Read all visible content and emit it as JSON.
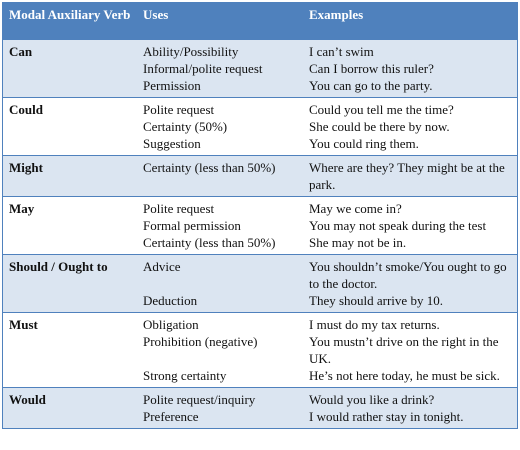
{
  "table": {
    "header": [
      "Modal Auxiliary Verb",
      "Uses",
      "Examples"
    ],
    "rows": [
      {
        "modal": "Can",
        "entries": [
          {
            "use": "Ability/Possibility",
            "example": "I can’t swim"
          },
          {
            "use": "Informal/polite request",
            "example": "Can I borrow this ruler?"
          },
          {
            "use": "Permission",
            "example": "You can go to the party."
          }
        ]
      },
      {
        "modal": "Could",
        "entries": [
          {
            "use": "Polite request",
            "example": "Could you tell me the time?"
          },
          {
            "use": "Certainty (50%)",
            "example": "She could be there by now."
          },
          {
            "use": "Suggestion",
            "example": "You could ring them."
          }
        ]
      },
      {
        "modal": "Might",
        "entries": [
          {
            "use": "Certainty (less than 50%)",
            "example": "Where are they? They might be at the park."
          }
        ]
      },
      {
        "modal": "May",
        "entries": [
          {
            "use": "Polite request",
            "example": "May we come in?"
          },
          {
            "use": "Formal permission",
            "example": "You may not speak during the test"
          },
          {
            "use": "Certainty (less than 50%)",
            "example": "She may not be in."
          }
        ]
      },
      {
        "modal": "Should / Ought to",
        "entries": [
          {
            "use": "Advice",
            "example": "You shouldn’t smoke/You ought to go to the doctor."
          },
          {
            "use": "Deduction",
            "example": "They should arrive by 10."
          }
        ]
      },
      {
        "modal": "Must",
        "entries": [
          {
            "use": "Obligation",
            "example": "I must do my tax returns."
          },
          {
            "use": "Prohibition (negative)",
            "example": "You mustn’t drive on the right in the UK."
          },
          {
            "use": "Strong certainty",
            "example": "He’s not here today, he must be sick."
          }
        ]
      },
      {
        "modal": "Would",
        "entries": [
          {
            "use": "Polite request/inquiry",
            "example": "Would you like a drink?"
          },
          {
            "use": "Preference",
            "example": "I would rather stay in tonight."
          }
        ]
      }
    ]
  }
}
